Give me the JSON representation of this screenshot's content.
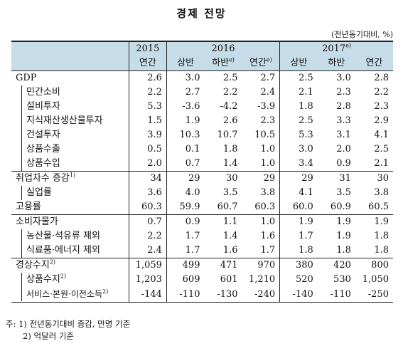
{
  "title": "경제 전망",
  "unit": "(전년동기대비, %)",
  "header": {
    "y2015": "2015",
    "y2016": "2016",
    "y2017": "2017",
    "y2017_sup": "e)",
    "sub_2015": "연간",
    "sub_h1": "상반",
    "sub_h2": "하반",
    "sub_h2_sup": "e)",
    "sub_year": "연간",
    "sub_year_sup": "e)",
    "sub17_h1": "상반",
    "sub17_h2": "하반",
    "sub17_year": "연간"
  },
  "rows": [
    {
      "label": "GDP",
      "values": [
        "2.6",
        "3.0",
        "2.5",
        "2.7",
        "2.5",
        "3.0",
        "2.8"
      ]
    },
    {
      "label": "민간소비",
      "values": [
        "2.2",
        "2.7",
        "2.2",
        "2.4",
        "2.1",
        "2.3",
        "2.2"
      ]
    },
    {
      "label": "설비투자",
      "values": [
        "5.3",
        "-3.6",
        "-4.2",
        "-3.9",
        "1.8",
        "2.8",
        "2.3"
      ]
    },
    {
      "label": "지식재산생산물투자",
      "values": [
        "1.5",
        "1.9",
        "2.6",
        "2.3",
        "2.5",
        "3.3",
        "2.9"
      ]
    },
    {
      "label": "건설투자",
      "values": [
        "3.9",
        "10.3",
        "10.7",
        "10.5",
        "5.3",
        "3.1",
        "4.1"
      ]
    },
    {
      "label": "상품수출",
      "values": [
        "0.5",
        "0.1",
        "1.8",
        "1.0",
        "3.0",
        "2.0",
        "2.5"
      ]
    },
    {
      "label": "상품수입",
      "values": [
        "2.0",
        "0.7",
        "1.4",
        "1.0",
        "3.4",
        "0.9",
        "2.1"
      ]
    },
    {
      "label": "취업자수 증감",
      "sup": "1)",
      "values": [
        "34",
        "29",
        "30",
        "29",
        "29",
        "31",
        "30"
      ]
    },
    {
      "label": "실업률",
      "values": [
        "3.6",
        "4.0",
        "3.5",
        "3.8",
        "4.1",
        "3.5",
        "3.8"
      ]
    },
    {
      "label": "고용률",
      "values": [
        "60.3",
        "59.9",
        "60.7",
        "60.3",
        "60.0",
        "60.9",
        "60.5"
      ]
    },
    {
      "label": "소비자물가",
      "values": [
        "0.7",
        "0.9",
        "1.1",
        "1.0",
        "1.9",
        "1.9",
        "1.9"
      ]
    },
    {
      "label": "농산물·석유류 제외",
      "values": [
        "2.2",
        "1.7",
        "1.4",
        "1.6",
        "1.7",
        "1.9",
        "1.8"
      ]
    },
    {
      "label": "식료품·에너지 제외",
      "values": [
        "2.4",
        "1.7",
        "1.6",
        "1.7",
        "1.8",
        "1.8",
        "1.8"
      ]
    },
    {
      "label": "경상수지",
      "sup": "2)",
      "values": [
        "1,059",
        "499",
        "471",
        "970",
        "380",
        "420",
        "800"
      ]
    },
    {
      "label": "상품수지",
      "sup": "2)",
      "values": [
        "1,203",
        "609",
        "601",
        "1,210",
        "520",
        "530",
        "1,050"
      ]
    },
    {
      "label": "서비스·본원·이전소득",
      "sup": "2)",
      "values": [
        "-144",
        "-110",
        "-130",
        "-240",
        "-140",
        "-110",
        "-250"
      ]
    }
  ],
  "notes": {
    "note1": "주: 1) 전년동기대비 증감, 만명 기준",
    "note2": "2) 억달러 기준"
  }
}
